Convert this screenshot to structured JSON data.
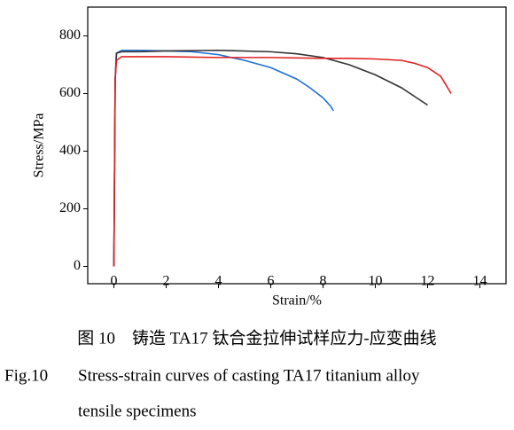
{
  "chart_data": {
    "type": "line",
    "x_label": "Strain/%",
    "y_label": "Stress/MPa",
    "xlim": [
      -1,
      15
    ],
    "xticks": [
      0,
      2,
      4,
      6,
      8,
      10,
      12,
      14
    ],
    "ylim": [
      -60,
      900
    ],
    "yticks": [
      0,
      200,
      400,
      600,
      800
    ],
    "series": [
      {
        "color": "#1f6fd6",
        "x": [
          0,
          0.05,
          0.1,
          0.3,
          1,
          2,
          3,
          4,
          5,
          6,
          7,
          7.5,
          8,
          8.3,
          8.4
        ],
        "values": [
          0,
          650,
          740,
          750,
          750,
          748,
          745,
          735,
          715,
          690,
          650,
          620,
          585,
          555,
          540
        ]
      },
      {
        "color": "#333333",
        "x": [
          0,
          0.05,
          0.1,
          0.3,
          1,
          2,
          4,
          6,
          7,
          8,
          9,
          10,
          11,
          11.5,
          12
        ],
        "values": [
          0,
          650,
          740,
          745,
          745,
          748,
          750,
          745,
          738,
          725,
          700,
          665,
          620,
          590,
          560
        ]
      },
      {
        "color": "#e02020",
        "x": [
          0,
          0.05,
          0.1,
          0.3,
          2,
          4,
          6,
          8,
          9,
          10,
          11,
          11.5,
          12,
          12.5,
          12.9
        ],
        "values": [
          0,
          650,
          715,
          728,
          728,
          725,
          725,
          722,
          722,
          720,
          715,
          705,
          690,
          660,
          600
        ]
      }
    ]
  },
  "caption": {
    "zh": "图 10　铸造 TA17 钛合金拉伸试样应力-应变曲线",
    "label": "Fig.10",
    "en_lines": [
      "Stress-strain curves of casting TA17 titanium alloy",
      "tensile specimens"
    ]
  }
}
